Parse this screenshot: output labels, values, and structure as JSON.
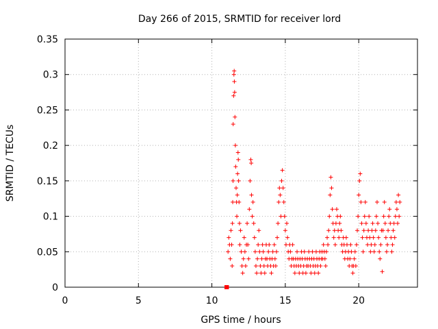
{
  "chart_data": {
    "type": "scatter",
    "title": "Day 266 of 2015, SRMTID for receiver lord",
    "xlabel": "GPS time / hours",
    "ylabel": "SRMTID / TECUs",
    "xlim": [
      0,
      24
    ],
    "ylim": [
      0,
      0.35
    ],
    "xticks": [
      0,
      5,
      10,
      15,
      20
    ],
    "xtick_labels": [
      "0",
      "5",
      "10",
      "15",
      "20"
    ],
    "yticks": [
      0,
      0.05,
      0.1,
      0.15,
      0.2,
      0.25,
      0.3,
      0.35
    ],
    "ytick_labels": [
      "0",
      "0.05",
      "0.1",
      "0.15",
      "0.2",
      "0.25",
      "0.3",
      "0.35"
    ],
    "grid": true,
    "marker": "+",
    "color": "#ff0000",
    "series": [
      {
        "name": "SRMTID",
        "points": [
          [
            11.0,
            0.0
          ],
          [
            11.02,
            0.0
          ],
          [
            11.1,
            0.05
          ],
          [
            11.15,
            0.07
          ],
          [
            11.2,
            0.06
          ],
          [
            11.25,
            0.04
          ],
          [
            11.3,
            0.08
          ],
          [
            11.35,
            0.06
          ],
          [
            11.38,
            0.03
          ],
          [
            11.4,
            0.09
          ],
          [
            11.42,
            0.12
          ],
          [
            11.44,
            0.15
          ],
          [
            11.45,
            0.23
          ],
          [
            11.48,
            0.27
          ],
          [
            11.5,
            0.3
          ],
          [
            11.52,
            0.305
          ],
          [
            11.53,
            0.29
          ],
          [
            11.55,
            0.275
          ],
          [
            11.57,
            0.24
          ],
          [
            11.6,
            0.2
          ],
          [
            11.62,
            0.17
          ],
          [
            11.65,
            0.14
          ],
          [
            11.68,
            0.12
          ],
          [
            11.7,
            0.1
          ],
          [
            11.73,
            0.13
          ],
          [
            11.75,
            0.16
          ],
          [
            11.78,
            0.19
          ],
          [
            11.8,
            0.18
          ],
          [
            11.82,
            0.15
          ],
          [
            11.85,
            0.12
          ],
          [
            11.88,
            0.09
          ],
          [
            11.9,
            0.06
          ],
          [
            11.95,
            0.08
          ],
          [
            12.0,
            0.05
          ],
          [
            12.05,
            0.03
          ],
          [
            12.1,
            0.02
          ],
          [
            12.15,
            0.04
          ],
          [
            12.2,
            0.07
          ],
          [
            12.25,
            0.05
          ],
          [
            12.3,
            0.03
          ],
          [
            12.35,
            0.06
          ],
          [
            12.4,
            0.09
          ],
          [
            12.45,
            0.06
          ],
          [
            12.5,
            0.04
          ],
          [
            12.55,
            0.11
          ],
          [
            12.6,
            0.15
          ],
          [
            12.65,
            0.18
          ],
          [
            12.68,
            0.175
          ],
          [
            12.7,
            0.13
          ],
          [
            12.75,
            0.1
          ],
          [
            12.8,
            0.12
          ],
          [
            12.85,
            0.09
          ],
          [
            12.9,
            0.07
          ],
          [
            12.95,
            0.05
          ],
          [
            13.0,
            0.03
          ],
          [
            13.05,
            0.02
          ],
          [
            13.1,
            0.04
          ],
          [
            13.15,
            0.06
          ],
          [
            13.2,
            0.08
          ],
          [
            13.25,
            0.05
          ],
          [
            13.3,
            0.03
          ],
          [
            13.35,
            0.02
          ],
          [
            13.4,
            0.04
          ],
          [
            13.45,
            0.06
          ],
          [
            13.5,
            0.05
          ],
          [
            13.55,
            0.03
          ],
          [
            13.6,
            0.02
          ],
          [
            13.65,
            0.04
          ],
          [
            13.7,
            0.06
          ],
          [
            13.75,
            0.04
          ],
          [
            13.8,
            0.03
          ],
          [
            13.85,
            0.05
          ],
          [
            13.9,
            0.06
          ],
          [
            13.95,
            0.04
          ],
          [
            14.0,
            0.03
          ],
          [
            14.05,
            0.02
          ],
          [
            14.1,
            0.04
          ],
          [
            14.15,
            0.05
          ],
          [
            14.2,
            0.03
          ],
          [
            14.25,
            0.06
          ],
          [
            14.3,
            0.04
          ],
          [
            14.35,
            0.03
          ],
          [
            14.4,
            0.05
          ],
          [
            14.45,
            0.07
          ],
          [
            14.5,
            0.09
          ],
          [
            14.55,
            0.12
          ],
          [
            14.6,
            0.14
          ],
          [
            14.65,
            0.13
          ],
          [
            14.7,
            0.1
          ],
          [
            14.75,
            0.15
          ],
          [
            14.8,
            0.165
          ],
          [
            14.85,
            0.14
          ],
          [
            14.9,
            0.12
          ],
          [
            14.95,
            0.1
          ],
          [
            15.0,
            0.08
          ],
          [
            15.05,
            0.06
          ],
          [
            15.1,
            0.09
          ],
          [
            15.15,
            0.07
          ],
          [
            15.2,
            0.05
          ],
          [
            15.25,
            0.04
          ],
          [
            15.3,
            0.06
          ],
          [
            15.35,
            0.05
          ],
          [
            15.4,
            0.03
          ],
          [
            15.45,
            0.04
          ],
          [
            15.5,
            0.06
          ],
          [
            15.55,
            0.04
          ],
          [
            15.6,
            0.03
          ],
          [
            15.65,
            0.02
          ],
          [
            15.7,
            0.04
          ],
          [
            15.75,
            0.03
          ],
          [
            15.8,
            0.05
          ],
          [
            15.85,
            0.04
          ],
          [
            15.9,
            0.03
          ],
          [
            15.95,
            0.02
          ],
          [
            16.0,
            0.04
          ],
          [
            16.05,
            0.03
          ],
          [
            16.1,
            0.05
          ],
          [
            16.15,
            0.04
          ],
          [
            16.2,
            0.02
          ],
          [
            16.25,
            0.03
          ],
          [
            16.3,
            0.05
          ],
          [
            16.35,
            0.04
          ],
          [
            16.4,
            0.02
          ],
          [
            16.45,
            0.03
          ],
          [
            16.5,
            0.04
          ],
          [
            16.55,
            0.03
          ],
          [
            16.6,
            0.05
          ],
          [
            16.65,
            0.04
          ],
          [
            16.7,
            0.03
          ],
          [
            16.75,
            0.02
          ],
          [
            16.8,
            0.04
          ],
          [
            16.85,
            0.05
          ],
          [
            16.9,
            0.03
          ],
          [
            16.95,
            0.04
          ],
          [
            17.0,
            0.02
          ],
          [
            17.05,
            0.03
          ],
          [
            17.1,
            0.05
          ],
          [
            17.15,
            0.04
          ],
          [
            17.2,
            0.03
          ],
          [
            17.25,
            0.02
          ],
          [
            17.3,
            0.04
          ],
          [
            17.35,
            0.05
          ],
          [
            17.4,
            0.03
          ],
          [
            17.45,
            0.04
          ],
          [
            17.5,
            0.05
          ],
          [
            17.55,
            0.04
          ],
          [
            17.6,
            0.06
          ],
          [
            17.65,
            0.05
          ],
          [
            17.7,
            0.04
          ],
          [
            17.75,
            0.03
          ],
          [
            17.8,
            0.05
          ],
          [
            17.85,
            0.07
          ],
          [
            17.9,
            0.06
          ],
          [
            17.95,
            0.08
          ],
          [
            18.0,
            0.1
          ],
          [
            18.05,
            0.13
          ],
          [
            18.1,
            0.155
          ],
          [
            18.15,
            0.14
          ],
          [
            18.2,
            0.11
          ],
          [
            18.25,
            0.09
          ],
          [
            18.3,
            0.07
          ],
          [
            18.35,
            0.08
          ],
          [
            18.4,
            0.06
          ],
          [
            18.45,
            0.09
          ],
          [
            18.5,
            0.11
          ],
          [
            18.55,
            0.1
          ],
          [
            18.6,
            0.08
          ],
          [
            18.65,
            0.07
          ],
          [
            18.7,
            0.09
          ],
          [
            18.75,
            0.1
          ],
          [
            18.8,
            0.08
          ],
          [
            18.85,
            0.06
          ],
          [
            18.9,
            0.05
          ],
          [
            18.95,
            0.07
          ],
          [
            19.0,
            0.06
          ],
          [
            19.05,
            0.04
          ],
          [
            19.1,
            0.05
          ],
          [
            19.15,
            0.07
          ],
          [
            19.2,
            0.06
          ],
          [
            19.25,
            0.04
          ],
          [
            19.3,
            0.05
          ],
          [
            19.35,
            0.03
          ],
          [
            19.4,
            0.04
          ],
          [
            19.45,
            0.06
          ],
          [
            19.5,
            0.05
          ],
          [
            19.55,
            0.03
          ],
          [
            19.6,
            0.02
          ],
          [
            19.65,
            0.03
          ],
          [
            19.7,
            0.04
          ],
          [
            19.75,
            0.05
          ],
          [
            19.8,
            0.03
          ],
          [
            19.85,
            0.06
          ],
          [
            19.9,
            0.08
          ],
          [
            19.95,
            0.1
          ],
          [
            20.0,
            0.13
          ],
          [
            20.05,
            0.15
          ],
          [
            20.1,
            0.16
          ],
          [
            20.15,
            0.12
          ],
          [
            20.2,
            0.09
          ],
          [
            20.25,
            0.07
          ],
          [
            20.3,
            0.05
          ],
          [
            20.35,
            0.08
          ],
          [
            20.4,
            0.1
          ],
          [
            20.45,
            0.12
          ],
          [
            20.5,
            0.09
          ],
          [
            20.55,
            0.07
          ],
          [
            20.6,
            0.06
          ],
          [
            20.65,
            0.08
          ],
          [
            20.7,
            0.1
          ],
          [
            20.75,
            0.07
          ],
          [
            20.8,
            0.05
          ],
          [
            20.85,
            0.06
          ],
          [
            20.9,
            0.08
          ],
          [
            20.95,
            0.09
          ],
          [
            21.0,
            0.07
          ],
          [
            21.05,
            0.05
          ],
          [
            21.1,
            0.06
          ],
          [
            21.15,
            0.08
          ],
          [
            21.2,
            0.1
          ],
          [
            21.25,
            0.12
          ],
          [
            21.3,
            0.09
          ],
          [
            21.35,
            0.07
          ],
          [
            21.4,
            0.05
          ],
          [
            21.45,
            0.04
          ],
          [
            21.5,
            0.06
          ],
          [
            21.55,
            0.08
          ],
          [
            21.6,
            0.022
          ],
          [
            21.65,
            0.08
          ],
          [
            21.7,
            0.1
          ],
          [
            21.75,
            0.12
          ],
          [
            21.8,
            0.09
          ],
          [
            21.85,
            0.07
          ],
          [
            21.9,
            0.05
          ],
          [
            21.95,
            0.06
          ],
          [
            22.0,
            0.08
          ],
          [
            22.05,
            0.1
          ],
          [
            22.1,
            0.11
          ],
          [
            22.15,
            0.09
          ],
          [
            22.2,
            0.07
          ],
          [
            22.25,
            0.05
          ],
          [
            22.3,
            0.06
          ],
          [
            22.35,
            0.08
          ],
          [
            22.4,
            0.09
          ],
          [
            22.45,
            0.07
          ],
          [
            22.5,
            0.1
          ],
          [
            22.55,
            0.12
          ],
          [
            22.6,
            0.11
          ],
          [
            22.65,
            0.09
          ],
          [
            22.7,
            0.13
          ],
          [
            22.75,
            0.1
          ],
          [
            22.8,
            0.12
          ]
        ]
      }
    ]
  }
}
